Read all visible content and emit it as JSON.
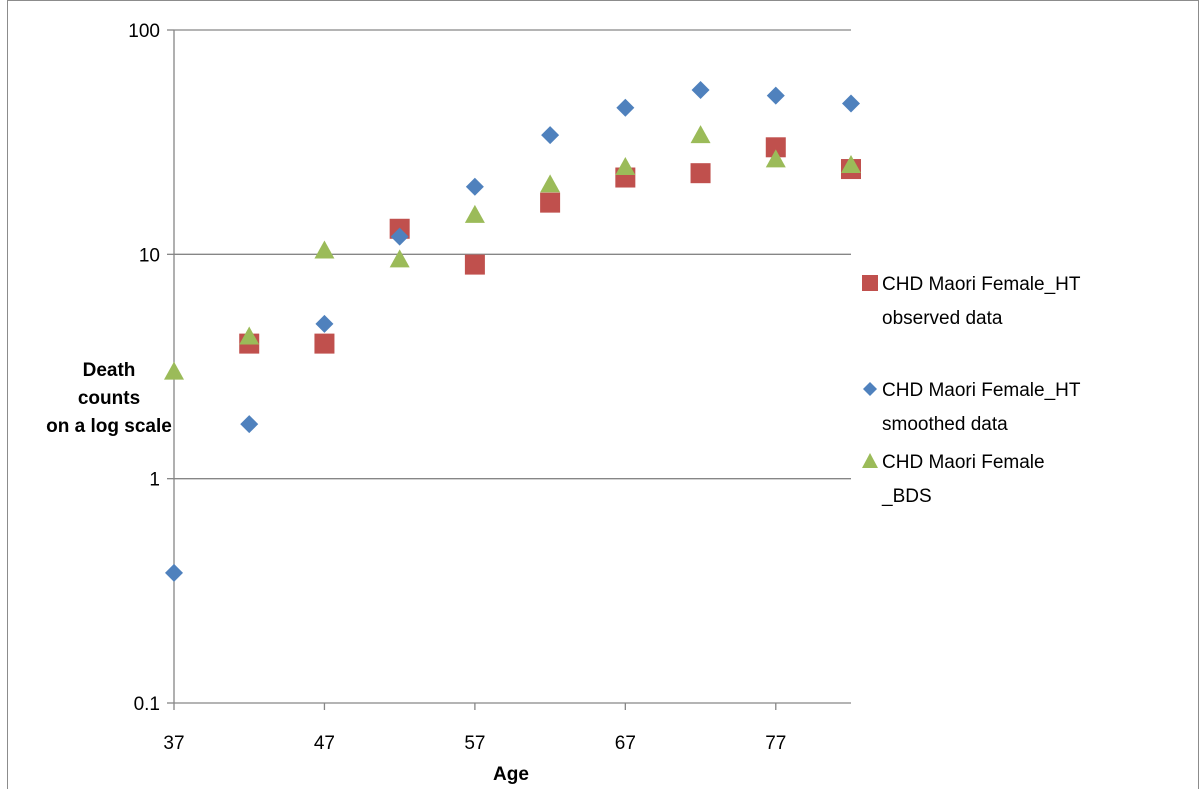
{
  "chart_data": {
    "type": "scatter",
    "title": "",
    "xlabel": "Age",
    "ylabel_lines": [
      "Death",
      "counts",
      "on a log scale"
    ],
    "xlim": [
      37,
      82
    ],
    "ylim": [
      0.1,
      100
    ],
    "y_scale": "log",
    "x_ticks": [
      37,
      47,
      57,
      67,
      77
    ],
    "y_ticks": [
      0.1,
      1,
      10,
      100
    ],
    "y_tick_labels": [
      "0.1",
      "1",
      "10",
      "100"
    ],
    "grid": "horizontal",
    "legend_position": "right",
    "series": [
      {
        "legend_lines": [
          "CHD Maori Female_HT",
          "observed data"
        ],
        "marker": "square",
        "color": "#c0504d",
        "x": [
          42,
          47,
          52,
          57,
          62,
          67,
          72,
          77,
          82
        ],
        "y": [
          4,
          4,
          13,
          9,
          17,
          22,
          23,
          30,
          24
        ]
      },
      {
        "legend_lines": [
          "CHD Maori Female_HT",
          "smoothed data"
        ],
        "marker": "diamond",
        "color": "#4f81bd",
        "x": [
          37,
          42,
          47,
          52,
          57,
          62,
          67,
          72,
          77,
          82
        ],
        "y": [
          0.38,
          1.75,
          4.9,
          12,
          20,
          34,
          45,
          54,
          51,
          47
        ]
      },
      {
        "legend_lines": [
          "CHD Maori Female",
          "_BDS"
        ],
        "marker": "triangle",
        "color": "#9bbb59",
        "x": [
          37,
          42,
          47,
          52,
          57,
          62,
          67,
          72,
          77,
          82
        ],
        "y": [
          3,
          4.3,
          10.4,
          9.5,
          15,
          20.5,
          24.5,
          34,
          26.5,
          25
        ]
      }
    ]
  }
}
